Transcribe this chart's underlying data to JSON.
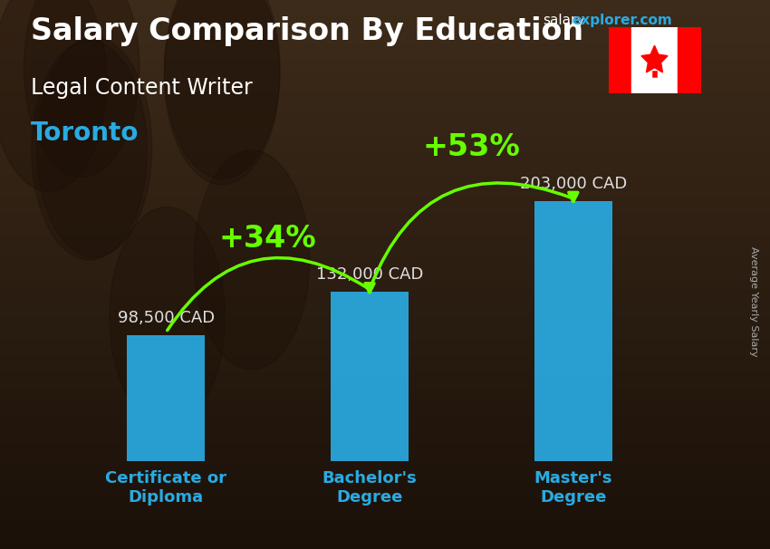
{
  "title": "Salary Comparison By Education",
  "subtitle": "Legal Content Writer",
  "city": "Toronto",
  "watermark_salary": "salary",
  "watermark_rest": "explorer.com",
  "ylabel": "Average Yearly Salary",
  "categories": [
    "Certificate or\nDiploma",
    "Bachelor's\nDegree",
    "Master's\nDegree"
  ],
  "values": [
    98500,
    132000,
    203000
  ],
  "value_labels": [
    "98,500 CAD",
    "132,000 CAD",
    "203,000 CAD"
  ],
  "pct_labels": [
    "+34%",
    "+53%"
  ],
  "bar_color": "#29abe2",
  "bar_alpha": 0.92,
  "bg_color_top": "#4a3a2a",
  "bg_color_bot": "#1a1008",
  "title_color": "#ffffff",
  "subtitle_color": "#ffffff",
  "city_color": "#29abe2",
  "salary_label_color": "#e0e0e0",
  "pct_color": "#66ff00",
  "arrow_color": "#66ff00",
  "tick_color": "#29abe2",
  "ylim": [
    0,
    240000
  ],
  "bar_width": 0.38,
  "title_fontsize": 24,
  "subtitle_fontsize": 17,
  "city_fontsize": 20,
  "value_label_fontsize": 13,
  "pct_fontsize": 24,
  "tick_fontsize": 13,
  "watermark_fontsize": 11
}
